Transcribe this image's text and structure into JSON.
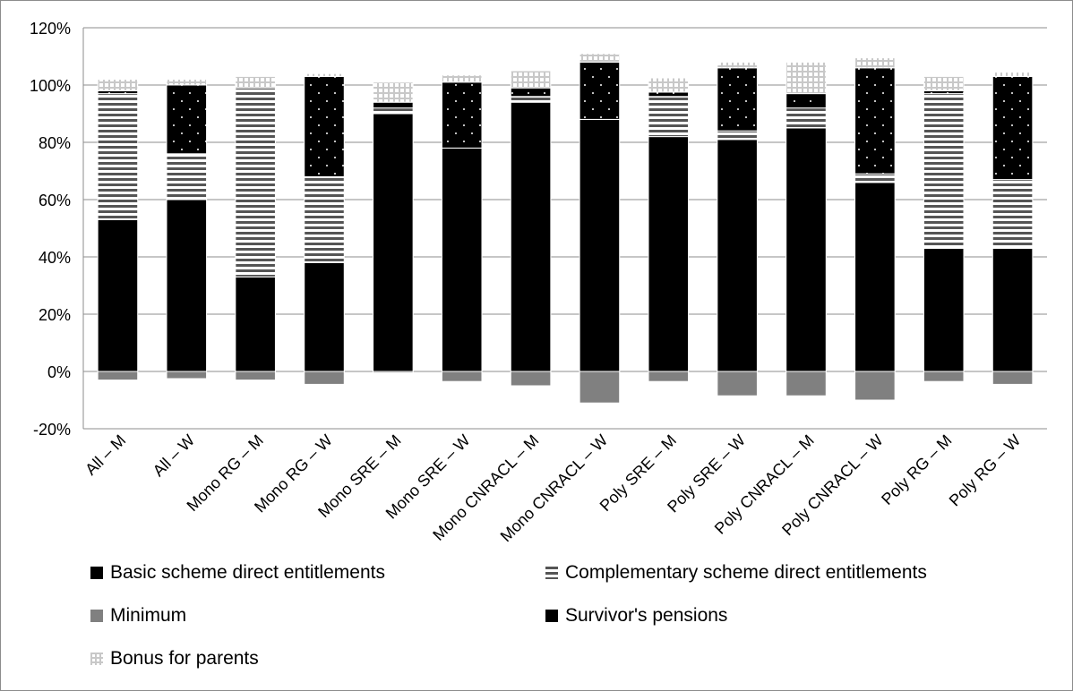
{
  "chart_data": {
    "type": "bar",
    "stacked": true,
    "ylim": [
      -20,
      120
    ],
    "yticks": [
      -20,
      0,
      20,
      40,
      60,
      80,
      100,
      120
    ],
    "ytick_labels": [
      "-20%",
      "0%",
      "20%",
      "40%",
      "60%",
      "80%",
      "100%",
      "120%"
    ],
    "grid": true,
    "legend_position": "bottom",
    "categories": [
      "All – M",
      "All – W",
      "Mono RG – M",
      "Mono RG – W",
      "Mono SRE – M",
      "Mono SRE – W",
      "Mono CNRACL – M",
      "Mono CNRACL – W",
      "Poly SRE – M",
      "Poly SRE – W",
      "Poly CNRACL – M",
      "Poly CNRACL – W",
      "Poly RG – M",
      "Poly RG – W"
    ],
    "series": [
      {
        "name": "Basic scheme direct entitlements",
        "color": "#000000",
        "pattern": "solid",
        "values": [
          53,
          60,
          33,
          38,
          90,
          78,
          94,
          88,
          82,
          81,
          85,
          66,
          43,
          43
        ]
      },
      {
        "name": "Complementary scheme direct entitlements",
        "color": "#555555",
        "pattern": "hstripes",
        "values": [
          44,
          16,
          66,
          30,
          2,
          0,
          2,
          0,
          14,
          3,
          7,
          3,
          54,
          24
        ]
      },
      {
        "name": "Minimum",
        "color": "#808080",
        "pattern": "solid",
        "values": [
          -3,
          -2.5,
          -3,
          -4.5,
          -0.5,
          -3.5,
          -5,
          -11,
          -3.5,
          -8.5,
          -8.5,
          -10,
          -3.5,
          -4.5
        ]
      },
      {
        "name": "Survivor's pensions",
        "color": "#000000",
        "pattern": "dots",
        "values": [
          1,
          24,
          0,
          35,
          2,
          23,
          3,
          20,
          1.5,
          22,
          5,
          37,
          1,
          36
        ]
      },
      {
        "name": "Bonus for parents",
        "color": "#c8c8c8",
        "pattern": "grid",
        "values": [
          4,
          2,
          4,
          1,
          7,
          2.5,
          6,
          3,
          5,
          2,
          11,
          3.5,
          5,
          1.5
        ]
      }
    ]
  }
}
